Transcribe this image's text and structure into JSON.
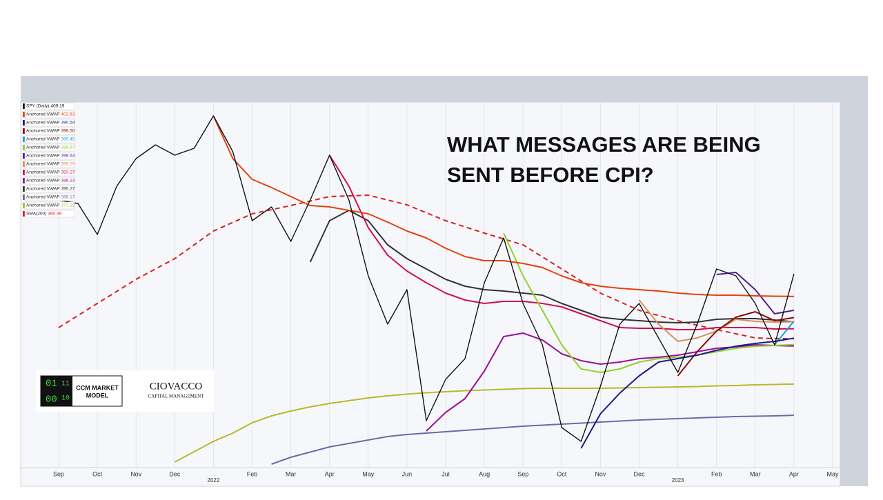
{
  "chart_data": {
    "type": "line",
    "annotation": [
      "WHAT MESSAGES ARE BEING",
      "SENT BEFORE CPI?"
    ],
    "categories": [
      "Sep",
      null,
      "Oct",
      null,
      "Nov",
      null,
      "Dec",
      null,
      "2022",
      null,
      "Feb",
      null,
      "Mar",
      null,
      "Apr",
      null,
      "May",
      null,
      "Jun",
      null,
      "Jul",
      null,
      "Aug",
      null,
      "Sep",
      null,
      "Oct",
      null,
      "Nov",
      null,
      "Dec",
      null,
      "2023",
      null,
      "Feb",
      null,
      "Mar",
      null,
      "Apr",
      null,
      "May"
    ],
    "ylim": [
      353,
      459
    ],
    "series": [
      {
        "name": "SPY (Daily)",
        "color": "#111111",
        "values": [
          430.6,
          429.6,
          420.6,
          434.6,
          442.6,
          446.6,
          443.6,
          445.6,
          455,
          444.6,
          424.6,
          428.6,
          418.6,
          430.6,
          443.6,
          430.6,
          408.6,
          394.6,
          404.6,
          366.6,
          378.6,
          384.6,
          406.6,
          419.6,
          400.6,
          388.6,
          364.6,
          360.6,
          376.6,
          394.6,
          400.6,
          390.6,
          380.6,
          394.6,
          410.6,
          408.6,
          400.6,
          388.6,
          409.19,
          null,
          null
        ]
      },
      {
        "name": "Anchored VWAP",
        "color": "#e8400c",
        "values": [
          null,
          null,
          null,
          null,
          null,
          null,
          null,
          null,
          455,
          442.6,
          436.6,
          434.2,
          431.6,
          429,
          428.6,
          427.6,
          426.6,
          424.2,
          421.6,
          419.6,
          416.6,
          414.2,
          413,
          413,
          412.2,
          411,
          408.6,
          406.6,
          405.6,
          405,
          404.6,
          404.2,
          403.6,
          403.2,
          403,
          403,
          402.8,
          402.7,
          402.63,
          null,
          null
        ]
      },
      {
        "name": "Anchored VWAP",
        "color": "#1a1a8c",
        "values": [
          null,
          null,
          null,
          null,
          null,
          null,
          null,
          null,
          null,
          null,
          null,
          null,
          null,
          null,
          null,
          null,
          null,
          null,
          null,
          null,
          null,
          null,
          null,
          null,
          null,
          null,
          null,
          358.6,
          368.6,
          374.6,
          379.6,
          383.6,
          384.6,
          385.6,
          387,
          388.2,
          389,
          389.6,
          390.54,
          null,
          null
        ]
      },
      {
        "name": "Anchored VWAP",
        "color": "#8b0a0a",
        "values": [
          null,
          null,
          null,
          null,
          null,
          null,
          null,
          null,
          null,
          null,
          null,
          null,
          null,
          null,
          null,
          null,
          null,
          null,
          null,
          null,
          null,
          null,
          null,
          null,
          null,
          null,
          null,
          null,
          null,
          null,
          null,
          null,
          379.6,
          386.6,
          392.6,
          396.6,
          398.2,
          395.6,
          396.5,
          null,
          null
        ],
        "value_labels": [
          null,
          null,
          null,
          null,
          null,
          null,
          null,
          null,
          null,
          null,
          null,
          null,
          null,
          null,
          null,
          null,
          null,
          null,
          null,
          null,
          null,
          null,
          null,
          null,
          null,
          null,
          null,
          null,
          null,
          null,
          null,
          null,
          null,
          null,
          null,
          null,
          null,
          null,
          "396.50",
          null,
          null
        ]
      },
      {
        "name": "Anchored VWAP",
        "color": "#1e9be0",
        "values": [
          null,
          null,
          null,
          null,
          null,
          null,
          null,
          null,
          null,
          null,
          null,
          null,
          null,
          null,
          null,
          null,
          null,
          null,
          null,
          null,
          null,
          null,
          null,
          null,
          null,
          null,
          null,
          null,
          null,
          null,
          null,
          null,
          null,
          null,
          null,
          null,
          null,
          388.6,
          395.45,
          null,
          null
        ]
      },
      {
        "name": "Anchored VWAP",
        "color": "#8fd12a",
        "values": [
          null,
          null,
          null,
          null,
          null,
          null,
          null,
          null,
          null,
          null,
          null,
          null,
          null,
          null,
          null,
          null,
          null,
          null,
          null,
          null,
          null,
          null,
          null,
          421,
          408.6,
          398.6,
          388.6,
          381.6,
          380.6,
          381.6,
          383.6,
          384.6,
          385,
          385.6,
          386.6,
          387.6,
          388.2,
          388.4,
          388.67,
          null,
          null
        ]
      },
      {
        "name": "Anchored VWAP",
        "color": "#5a1a8c",
        "values": [
          null,
          null,
          null,
          null,
          null,
          null,
          null,
          null,
          null,
          null,
          null,
          null,
          null,
          null,
          null,
          null,
          null,
          null,
          null,
          null,
          null,
          null,
          null,
          null,
          null,
          null,
          null,
          null,
          null,
          null,
          null,
          null,
          null,
          null,
          409,
          409.6,
          404.6,
          397.6,
          398.63,
          null,
          null
        ]
      },
      {
        "name": "Anchored VWAP",
        "color": "#d8905a",
        "values": [
          null,
          null,
          null,
          null,
          null,
          null,
          null,
          null,
          null,
          null,
          null,
          null,
          null,
          null,
          null,
          null,
          null,
          null,
          null,
          null,
          null,
          null,
          null,
          null,
          null,
          null,
          null,
          null,
          null,
          null,
          401.6,
          394.6,
          389.6,
          390.6,
          392.6,
          396,
          395.4,
          395.2,
          395.29,
          null,
          null
        ]
      },
      {
        "name": "Anchored VWAP",
        "color": "#d0104a",
        "values": [
          null,
          null,
          null,
          null,
          null,
          null,
          null,
          null,
          null,
          null,
          null,
          null,
          null,
          null,
          443.6,
          434.6,
          422.6,
          414.6,
          410,
          406.6,
          403.6,
          401.6,
          400.6,
          401.2,
          401.2,
          400.6,
          399.6,
          397.6,
          395.6,
          393.6,
          393.4,
          393.4,
          393,
          393,
          393.6,
          393.6,
          393.6,
          393.2,
          393.27,
          null,
          null
        ]
      },
      {
        "name": "Anchored VWAP",
        "color": "#9b0d9b",
        "values": [
          null,
          null,
          null,
          null,
          null,
          null,
          null,
          null,
          null,
          null,
          null,
          null,
          null,
          null,
          null,
          null,
          null,
          null,
          null,
          363.6,
          369,
          373,
          381,
          391,
          392,
          390,
          386,
          384,
          383,
          383.6,
          384.6,
          385,
          385.6,
          386.6,
          387.6,
          388,
          388.6,
          388.4,
          388.23,
          null,
          null
        ]
      },
      {
        "name": "Anchored VWAP",
        "color": "#333333",
        "values": [
          null,
          null,
          null,
          null,
          null,
          null,
          null,
          null,
          null,
          null,
          null,
          null,
          null,
          412.6,
          424.6,
          427.6,
          424.6,
          417.6,
          413.6,
          410.6,
          407.6,
          405.6,
          404.6,
          404.2,
          403.6,
          403,
          400.6,
          398.6,
          396.6,
          396,
          395.6,
          395.2,
          395,
          395.2,
          396,
          396.2,
          396.2,
          395.8,
          395.27,
          null,
          null
        ]
      },
      {
        "name": "Anchored VWAP",
        "color": "#6c6aa8",
        "values": [
          null,
          null,
          null,
          null,
          null,
          null,
          null,
          null,
          null,
          null,
          null,
          354,
          356,
          357.5,
          359,
          360,
          361,
          362,
          362.6,
          363,
          363.4,
          363.8,
          364.2,
          364.6,
          365,
          365.3,
          365.6,
          365.9,
          366.2,
          366.5,
          366.8,
          367,
          367.2,
          367.4,
          367.6,
          367.8,
          367.9,
          368,
          368.17,
          null,
          null
        ]
      },
      {
        "name": "Anchored VWAP",
        "color": "#b8b82a",
        "values": [
          null,
          null,
          null,
          null,
          null,
          null,
          354.6,
          357.6,
          360.6,
          363,
          366,
          368,
          369.4,
          370.6,
          371.6,
          372.4,
          373.2,
          373.8,
          374.3,
          374.7,
          375,
          375.3,
          375.5,
          375.7,
          375.9,
          376,
          376,
          376,
          376,
          376.1,
          376.2,
          376.3,
          376.4,
          376.5,
          376.7,
          376.8,
          377,
          377.1,
          377.22,
          null,
          null
        ]
      },
      {
        "name": "SMA(200)",
        "color": "#d42020",
        "dashed": true,
        "values": [
          393.6,
          397.1,
          400.6,
          404.1,
          407.6,
          410.6,
          413.6,
          417.6,
          421.6,
          424.1,
          426.6,
          427.8,
          429,
          430.3,
          431.6,
          431.8,
          432,
          430.6,
          429.2,
          426.9,
          424.6,
          422.8,
          421,
          419.3,
          417.6,
          414.1,
          410.6,
          407.1,
          403.6,
          401.1,
          398.6,
          397.1,
          395.6,
          394.3,
          393,
          391.8,
          390.6,
          390.4,
          390.39,
          null,
          null
        ]
      }
    ]
  },
  "logo": {
    "digits": [
      "01",
      "11",
      "00",
      "10"
    ],
    "name": [
      "CCM MARKET",
      "MODEL"
    ],
    "firm": "CIOVACCO",
    "firm_sub": "CAPITAL MANAGEMENT"
  }
}
